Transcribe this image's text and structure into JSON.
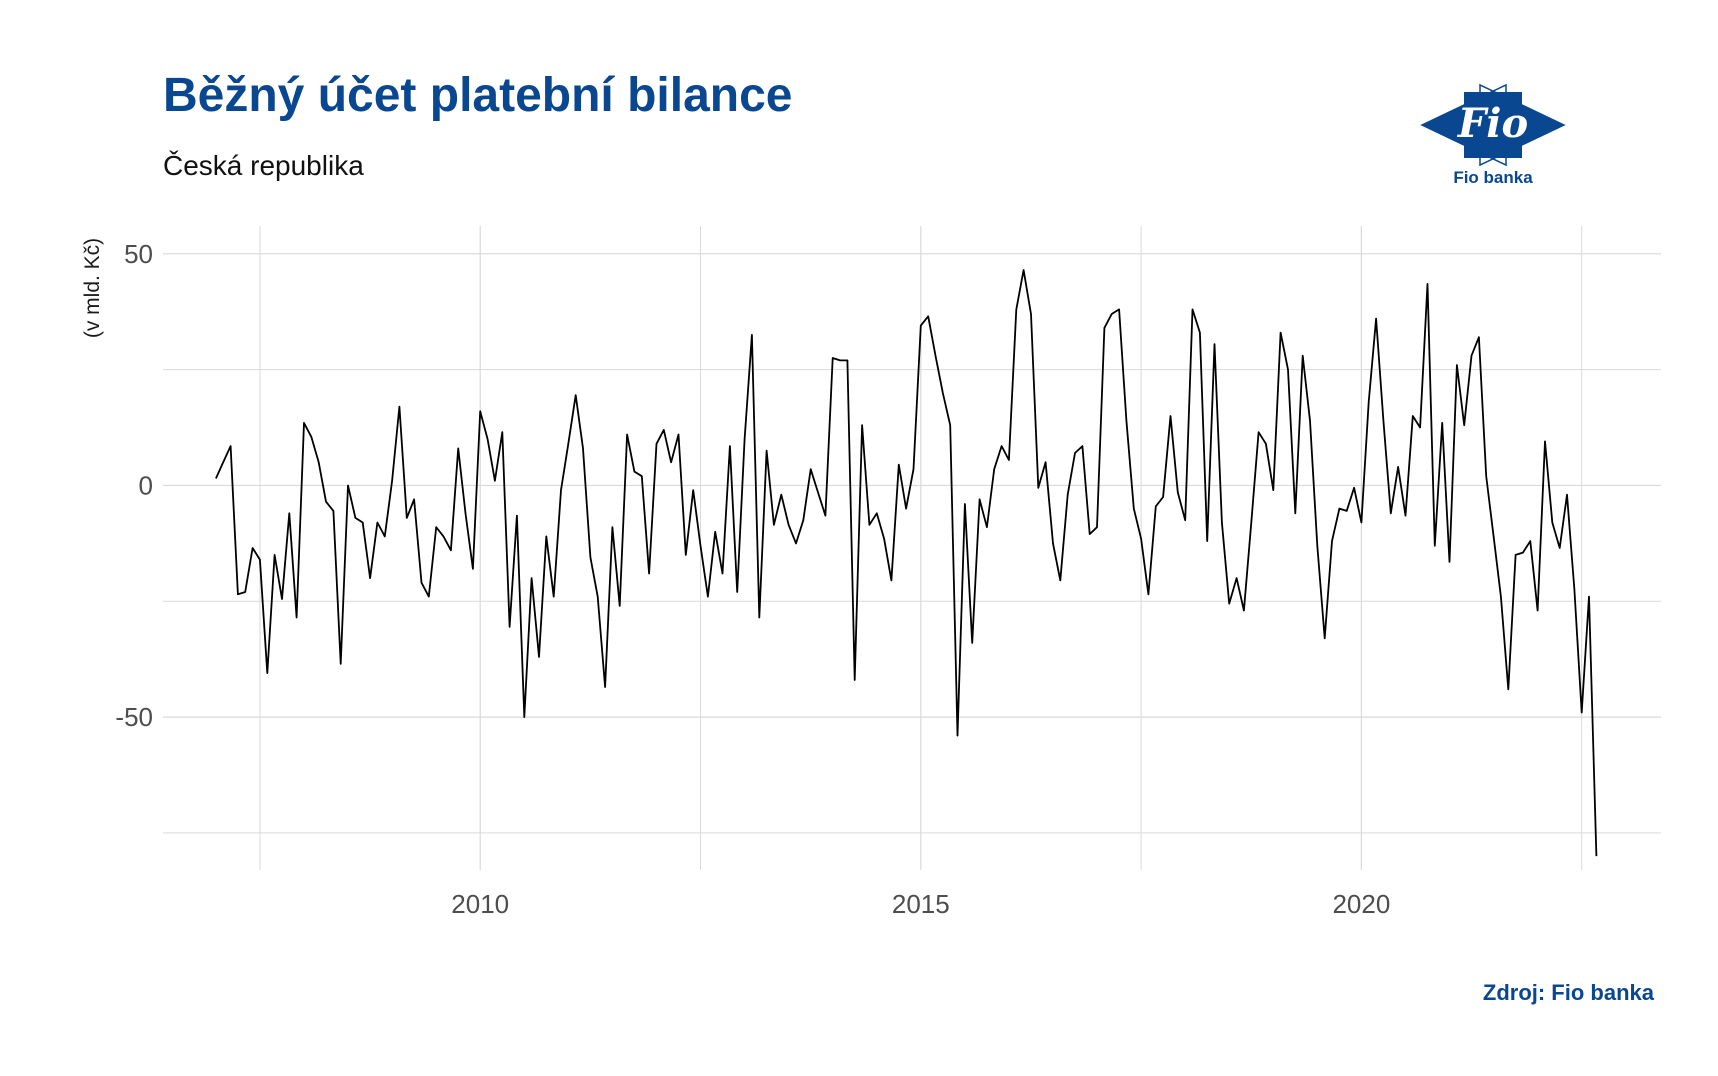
{
  "header": {
    "title": "Běžný účet platební bilance",
    "subtitle": "Česká republika"
  },
  "logo": {
    "mark": "Fio",
    "name": "Fio banka",
    "icon": "fio-banka-logo-icon"
  },
  "footer": {
    "source": "Zdroj: Fio banka"
  },
  "colors": {
    "title": "#0a4791",
    "line": "#000000",
    "grid": "#d9d9d9",
    "logo_blue": "#0a4791"
  },
  "chart_data": {
    "type": "line",
    "title": "Běžný účet platební bilance",
    "subtitle": "Česká republika",
    "xlabel": "",
    "ylabel": "(v mld. Kč)",
    "xlim": [
      2006.4,
      2023.4
    ],
    "ylim": [
      -83,
      56
    ],
    "x_ticks": [
      2010,
      2015,
      2020
    ],
    "x_tick_labels": [
      "2010",
      "2015",
      "2020"
    ],
    "y_ticks": [
      -50,
      0,
      50
    ],
    "y_tick_labels": [
      "-50",
      "0",
      "50"
    ],
    "grid": true,
    "legend": "none",
    "start": "2007-01",
    "frequency": "monthly",
    "series": [
      {
        "name": "",
        "values": [
          1.5,
          5.0,
          8.5,
          -23.5,
          -23.0,
          -13.5,
          -16.0,
          -40.5,
          -15.0,
          -24.5,
          -6.0,
          -28.5,
          13.5,
          10.5,
          5.0,
          -3.5,
          -5.5,
          -38.5,
          0.0,
          -7.0,
          -8.0,
          -20.0,
          -8.0,
          -11.0,
          1.0,
          17.0,
          -7.0,
          -3.0,
          -21.0,
          -24.0,
          -9.0,
          -11.0,
          -14.0,
          8.0,
          -6.0,
          -18.0,
          16.0,
          10.0,
          1.0,
          11.5,
          -30.5,
          -6.5,
          -50.0,
          -20.0,
          -37.0,
          -11.0,
          -24.0,
          -1.0,
          9.0,
          19.5,
          8.0,
          -15.5,
          -24.0,
          -43.5,
          -9.0,
          -26.0,
          11.0,
          3.0,
          2.0,
          -19.0,
          9.0,
          12.0,
          5.0,
          11.0,
          -15.0,
          -1.0,
          -13.0,
          -24.0,
          -10.0,
          -19.0,
          8.5,
          -23.0,
          10.0,
          32.5,
          -28.5,
          7.5,
          -8.5,
          -2.0,
          -8.5,
          -12.5,
          -7.5,
          3.5,
          -1.5,
          -6.5,
          27.5,
          27.0,
          27.0,
          -42.0,
          13.0,
          -8.5,
          -6.0,
          -11.5,
          -20.5,
          4.5,
          -5.0,
          3.5,
          34.5,
          36.5,
          28.0,
          20.0,
          13.0,
          -54.0,
          -4.0,
          -34.0,
          -3.0,
          -9.0,
          3.5,
          8.5,
          5.5,
          38.0,
          46.5,
          37.0,
          -0.5,
          5.0,
          -12.5,
          -20.5,
          -2.0,
          7.0,
          8.5,
          -10.5,
          -9.0,
          34.0,
          37.0,
          38.0,
          14.0,
          -5.0,
          -11.5,
          -23.5,
          -4.5,
          -2.5,
          15.0,
          -1.5,
          -7.5,
          38.0,
          33.0,
          -12.0,
          30.5,
          -8.0,
          -25.5,
          -20.0,
          -27.0,
          -8.0,
          11.5,
          9.0,
          -1.0,
          33.0,
          25.0,
          -6.0,
          28.0,
          14.0,
          -13.0,
          -33.0,
          -12.0,
          -5.0,
          -5.5,
          -0.5,
          -8.0,
          18.0,
          36.0,
          14.0,
          -6.0,
          4.0,
          -6.5,
          15.0,
          12.5,
          43.5,
          -13.0,
          13.5,
          -16.5,
          26.0,
          13.0,
          28.0,
          32.0,
          2.0,
          -11.0,
          -24.0,
          -44.0,
          -15.0,
          -14.5,
          -12.0,
          -27.0,
          9.5,
          -8.0,
          -13.5,
          -2.0,
          -22.5,
          -49.0,
          -24.0,
          -80.0
        ]
      }
    ]
  }
}
